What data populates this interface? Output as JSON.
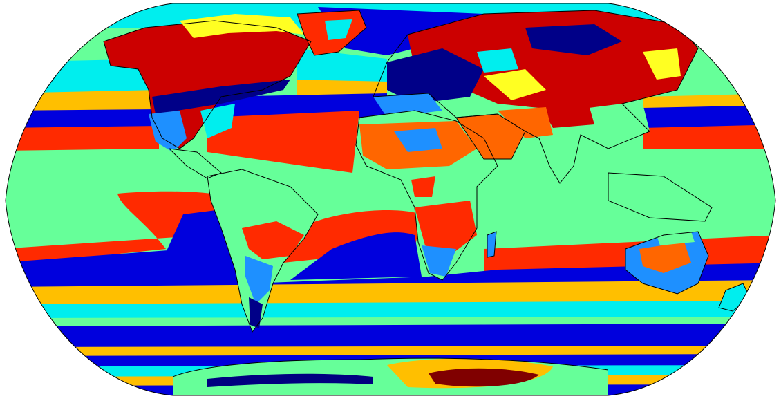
{
  "map": {
    "projection": "Robinson",
    "style": "categorical climate classification (jet colormap)",
    "colors": {
      "ocean_tropical": "#66ff99",
      "ocean_subtropic": "#ff2a00",
      "ocean_mid": "#0000dd",
      "ocean_temperate": "#ffbf00",
      "ocean_cool": "#00eeee",
      "polar_band_dark": "#000080",
      "polar_dark_red": "#800000",
      "land_hot_arid": "#ff6600",
      "land_semi_arid": "#1e90ff",
      "land_boreal": "#cc0000",
      "land_cold": "#000088",
      "land_tundra": "#ffff22",
      "land_tropical": "#66ff99",
      "coastline": "#000000",
      "frame": "#000000"
    },
    "has_legend": false,
    "has_title": false
  }
}
